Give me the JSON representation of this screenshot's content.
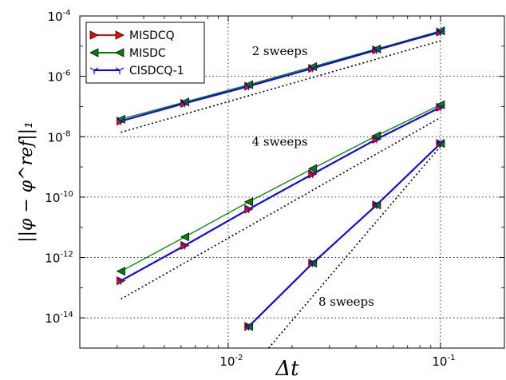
{
  "chart_data": {
    "type": "line",
    "x_scale": "log",
    "y_scale": "log",
    "xlim": [
      0.002,
      0.2
    ],
    "ylim": [
      1e-15,
      0.0001
    ],
    "grid": true,
    "legend_position": "top-left",
    "xlabel": "Δt",
    "ylabel": "||φ − φ^ref||₁",
    "x_ticks": [
      {
        "value": 0.01,
        "base": "10",
        "exp": "-2"
      },
      {
        "value": 0.1,
        "base": "10",
        "exp": "-1"
      }
    ],
    "y_ticks": [
      {
        "value": 0.0001,
        "base": "10",
        "exp": "-4"
      },
      {
        "value": 1e-06,
        "base": "10",
        "exp": "-6"
      },
      {
        "value": 1e-08,
        "base": "10",
        "exp": "-8"
      },
      {
        "value": 1e-10,
        "base": "10",
        "exp": "-10"
      },
      {
        "value": 1e-12,
        "base": "10",
        "exp": "-12"
      },
      {
        "value": 1e-14,
        "base": "10",
        "exp": "-14"
      }
    ],
    "legend": [
      {
        "name": "MISDCQ",
        "color": "#ff0000",
        "marker": "triangle-right"
      },
      {
        "name": "MISDC",
        "color": "#008000",
        "marker": "triangle-left"
      },
      {
        "name": "CISDCQ-1",
        "color": "#0000ff",
        "marker": "tri-down"
      }
    ],
    "annotations": [
      {
        "text": "2 sweeps",
        "x": 0.0175,
        "y": 5e-06
      },
      {
        "text": "4 sweeps",
        "x": 0.0175,
        "y": 5e-09
      },
      {
        "text": "8 sweeps",
        "x": 0.036,
        "y": 2.5e-14
      }
    ],
    "groups": [
      {
        "label": "2 sweeps",
        "series": [
          {
            "name": "MISDCQ",
            "color": "#ff0000",
            "x": [
              0.003125,
              0.00625,
              0.0125,
              0.025,
              0.05,
              0.1
            ],
            "y": [
              3.3e-08,
              1.28e-07,
              4.7e-07,
              1.85e-06,
              7.5e-06,
              2.95e-05
            ]
          },
          {
            "name": "MISDC",
            "color": "#008000",
            "x": [
              0.003125,
              0.00625,
              0.0125,
              0.025,
              0.05,
              0.1
            ],
            "y": [
              3.8e-08,
              1.42e-07,
              5.3e-07,
              2.1e-06,
              8.1e-06,
              3.2e-05
            ]
          },
          {
            "name": "CISDCQ-1",
            "color": "#0000ff",
            "x": [
              0.003125,
              0.00625,
              0.0125,
              0.025,
              0.05,
              0.1
            ],
            "y": [
              3.3e-08,
              1.28e-07,
              4.7e-07,
              1.85e-06,
              7.5e-06,
              2.95e-05
            ]
          }
        ],
        "reference": {
          "x": [
            0.003125,
            0.1
          ],
          "y": [
            1.4e-08,
            1.5e-05
          ]
        }
      },
      {
        "label": "4 sweeps",
        "series": [
          {
            "name": "MISDCQ",
            "color": "#ff0000",
            "x": [
              0.003125,
              0.00625,
              0.0125,
              0.025,
              0.05,
              0.1
            ],
            "y": [
              1.7e-13,
              2.5e-12,
              4e-11,
              5.8e-10,
              8.3e-09,
              9.5e-08
            ]
          },
          {
            "name": "MISDC",
            "color": "#008000",
            "x": [
              0.003125,
              0.00625,
              0.0125,
              0.025,
              0.05,
              0.1
            ],
            "y": [
              3.5e-13,
              4.8e-12,
              7e-11,
              8.8e-10,
              1.08e-08,
              1.15e-07
            ]
          },
          {
            "name": "CISDCQ-1",
            "color": "#0000ff",
            "x": [
              0.003125,
              0.00625,
              0.0125,
              0.025,
              0.05,
              0.1
            ],
            "y": [
              1.7e-13,
              2.5e-12,
              4e-11,
              5.8e-10,
              8.3e-09,
              9.5e-08
            ]
          }
        ],
        "reference": {
          "x": [
            0.003125,
            0.1
          ],
          "y": [
            4.2e-14,
            4.3e-08
          ]
        }
      },
      {
        "label": "8 sweeps",
        "series": [
          {
            "name": "MISDCQ",
            "color": "#ff0000",
            "x": [
              0.0125,
              0.025,
              0.05,
              0.1
            ],
            "y": [
              5.2e-15,
              6.5e-13,
              5.5e-11,
              6e-09
            ]
          },
          {
            "name": "MISDC",
            "color": "#008000",
            "x": [
              0.0125,
              0.025,
              0.05,
              0.1
            ],
            "y": [
              5.2e-15,
              6.5e-13,
              5.5e-11,
              6e-09
            ]
          },
          {
            "name": "CISDCQ-1",
            "color": "#0000ff",
            "x": [
              0.0125,
              0.025,
              0.05,
              0.1
            ],
            "y": [
              5.2e-15,
              6.5e-13,
              5.5e-11,
              6e-09
            ]
          }
        ],
        "reference": {
          "x": [
            0.0155,
            0.1
          ],
          "y": [
            1e-15,
            4.8e-09
          ]
        }
      }
    ]
  }
}
